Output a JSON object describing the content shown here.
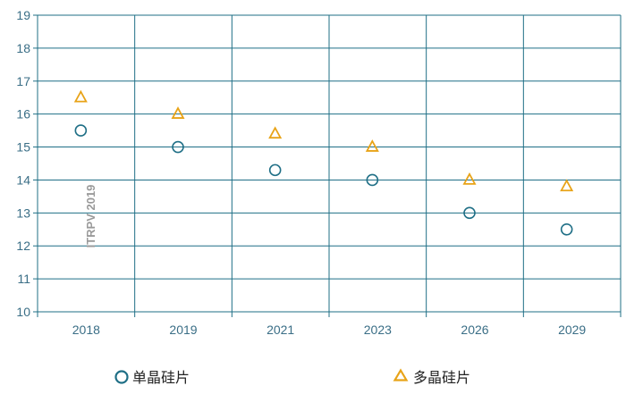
{
  "chart_data": {
    "type": "scatter",
    "categories": [
      "2018",
      "2019",
      "2021",
      "2023",
      "2026",
      "2029"
    ],
    "series": [
      {
        "name": "单晶硅片",
        "marker": "circle",
        "color": "#1f6f86",
        "values": [
          15.5,
          15.0,
          14.3,
          14.0,
          13.0,
          12.5
        ]
      },
      {
        "name": "多晶硅片",
        "marker": "triangle",
        "color": "#e8a317",
        "values": [
          16.5,
          16.0,
          15.4,
          15.0,
          14.0,
          13.8
        ]
      }
    ],
    "ylim": [
      10,
      19
    ],
    "yticks": [
      "10",
      "11",
      "12",
      "13",
      "14",
      "15",
      "16",
      "17",
      "18",
      "19"
    ],
    "grid": true,
    "legend_position": "bottom",
    "annotation": "ITRPV 2019",
    "colors": {
      "axis": "#1f6f86",
      "grid": "#1f6f86",
      "tick_text": "#3a6e86",
      "watermark": "#9a9a9a"
    }
  }
}
